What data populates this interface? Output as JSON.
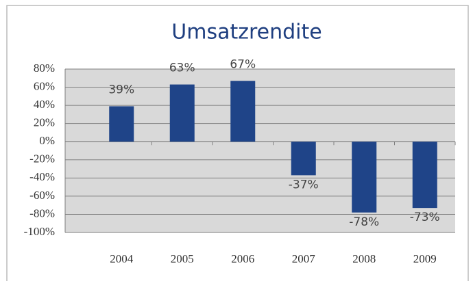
{
  "chart_data": {
    "type": "bar",
    "title": "Umsatzrendite",
    "categories": [
      "2004",
      "2005",
      "2006",
      "2007",
      "2008",
      "2009"
    ],
    "values": [
      39,
      63,
      67,
      -37,
      -78,
      -73
    ],
    "value_labels": [
      "39%",
      "63%",
      "67%",
      "-37%",
      "-78%",
      "-73%"
    ],
    "color": "#1f4488",
    "ylim": [
      -100,
      80
    ],
    "yticks": [
      {
        "value": -100,
        "label": "-100%"
      },
      {
        "value": -80,
        "label": "-80%"
      },
      {
        "value": -60,
        "label": "-60%"
      },
      {
        "value": -40,
        "label": "-40%"
      },
      {
        "value": -20,
        "label": "-20%"
      },
      {
        "value": 0,
        "label": "0%"
      },
      {
        "value": 20,
        "label": "20%"
      },
      {
        "value": 40,
        "label": "40%"
      },
      {
        "value": 60,
        "label": "60%"
      },
      {
        "value": 80,
        "label": "80%"
      }
    ],
    "grid": true
  }
}
